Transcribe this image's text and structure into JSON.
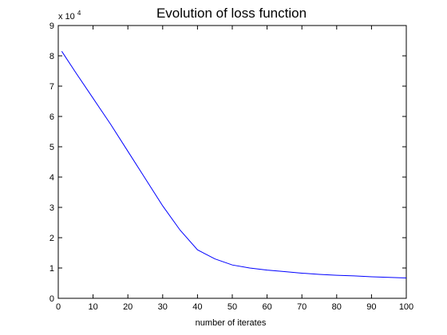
{
  "chart_data": {
    "type": "line",
    "title": "Evolution of loss function",
    "xlabel": "number of iterates",
    "ylabel": "",
    "y_exponent_label": {
      "base": "x 10",
      "exponent": "4"
    },
    "xlim": [
      0,
      100
    ],
    "ylim": [
      0,
      9
    ],
    "xticks": [
      "0",
      "10",
      "20",
      "30",
      "40",
      "50",
      "60",
      "70",
      "80",
      "90",
      "100"
    ],
    "yticks": [
      "0",
      "1",
      "2",
      "3",
      "4",
      "5",
      "6",
      "7",
      "8",
      "9"
    ],
    "grid": false,
    "line_color": "#0000ff",
    "series": [
      {
        "x": [
          1,
          5,
          10,
          15,
          20,
          25,
          30,
          35,
          40,
          45,
          50,
          55,
          60,
          65,
          70,
          75,
          80,
          85,
          90,
          95,
          100
        ],
        "values": [
          8.15,
          7.45,
          6.6,
          5.75,
          4.85,
          3.95,
          3.05,
          2.25,
          1.6,
          1.3,
          1.1,
          1.0,
          0.93,
          0.88,
          0.83,
          0.79,
          0.76,
          0.74,
          0.71,
          0.69,
          0.67
        ]
      }
    ]
  }
}
